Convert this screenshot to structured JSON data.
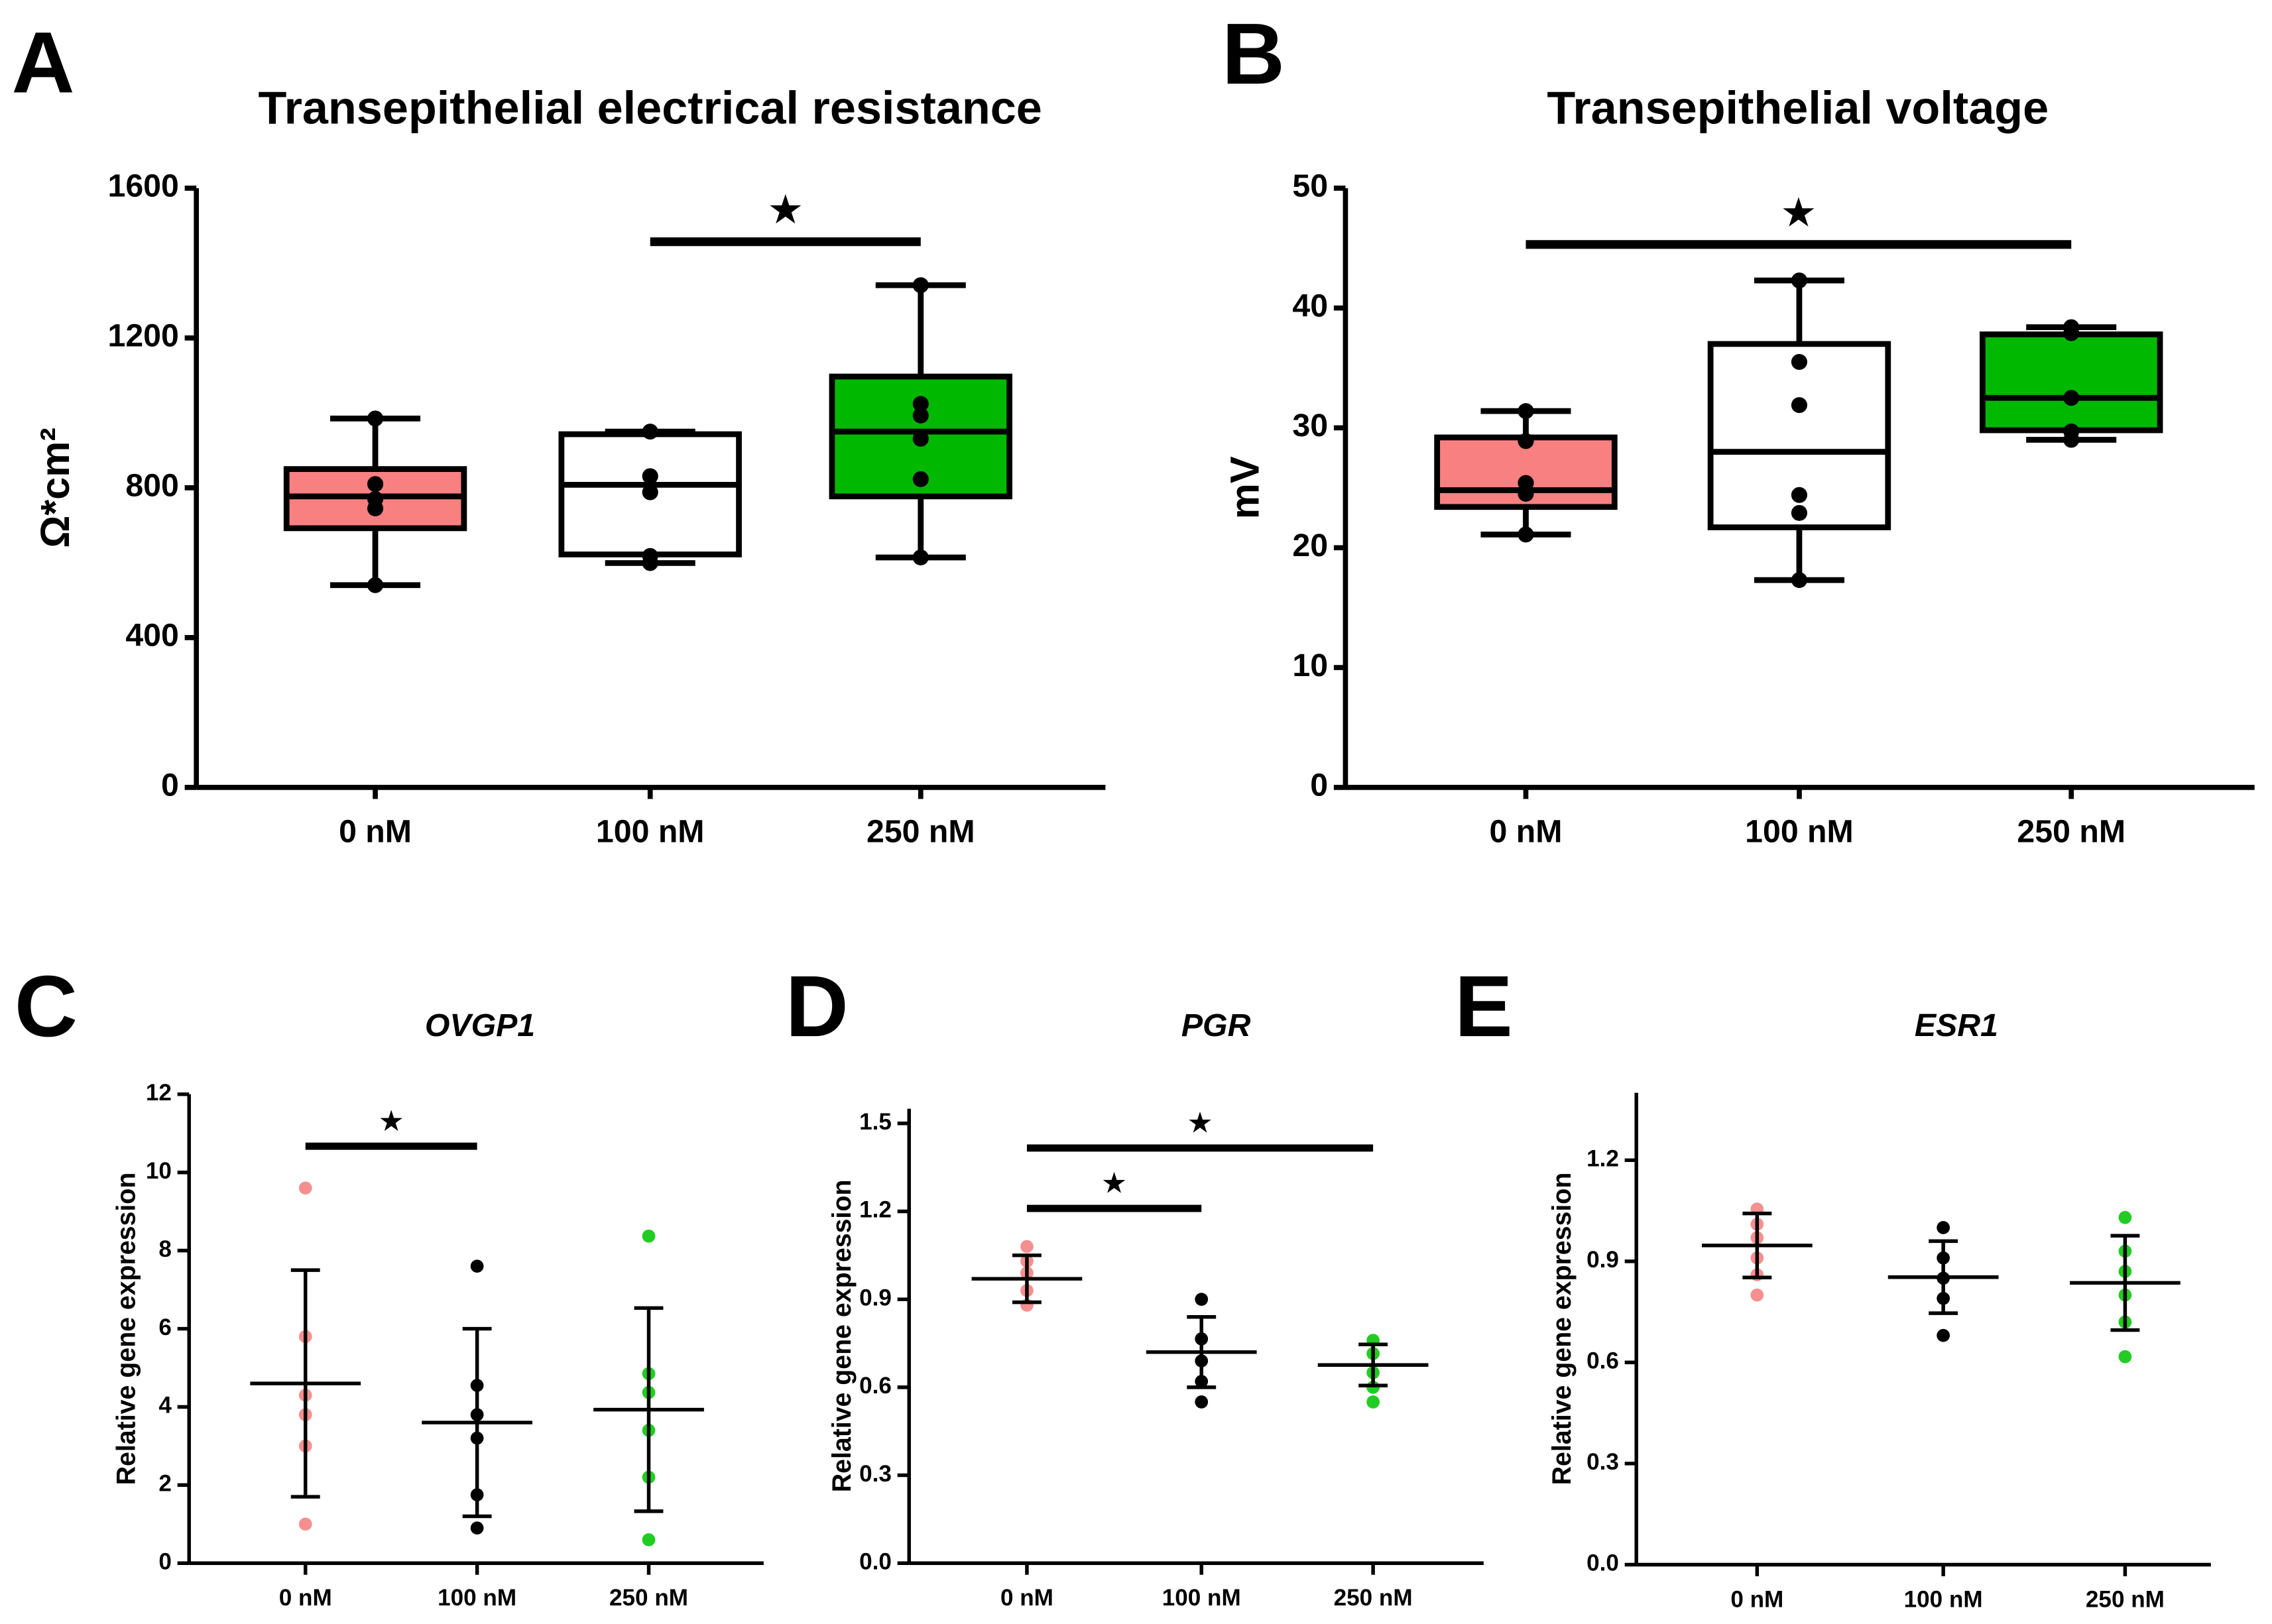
{
  "chart_data": [
    {
      "type": "box",
      "panel": "A",
      "title": "Transepithelial electrical resistance",
      "ylabel": "Ω*cm²",
      "categories": [
        "0 nM",
        "100 nM",
        "250 nM"
      ],
      "ylim": [
        0,
        1600
      ],
      "yticks": [
        0,
        400,
        800,
        1200,
        1600
      ],
      "groups": [
        {
          "color": "#f88080",
          "min": 540,
          "q1": 692,
          "median": 777,
          "q3": 850,
          "max": 985,
          "points": [
            985,
            810,
            770,
            745,
            540
          ]
        },
        {
          "color": "#ffffff",
          "min": 599,
          "q1": 622,
          "median": 808,
          "q3": 943,
          "max": 950,
          "points": [
            950,
            831,
            788,
            618,
            599
          ]
        },
        {
          "color": "#00b800",
          "min": 614,
          "q1": 777,
          "median": 950,
          "q3": 1097,
          "max": 1341,
          "points": [
            1341,
            1024,
            993,
            931,
            823,
            614
          ]
        }
      ],
      "annotations": [
        {
          "from": 1,
          "to": 2,
          "y": 1457,
          "label": "★"
        }
      ]
    },
    {
      "type": "box",
      "panel": "B",
      "title": "Transepithelial voltage",
      "ylabel": "mV",
      "categories": [
        "0 nM",
        "100 nM",
        "250 nM"
      ],
      "ylim": [
        0,
        50
      ],
      "yticks": [
        0,
        10,
        20,
        30,
        40,
        50
      ],
      "groups": [
        {
          "color": "#f88080",
          "min": 21.1,
          "q1": 23.4,
          "median": 24.8,
          "q3": 29.2,
          "max": 31.4,
          "points": [
            31.4,
            28.9,
            25.4,
            24.5,
            21.1
          ]
        },
        {
          "color": "#ffffff",
          "min": 17.3,
          "q1": 21.7,
          "median": 28,
          "q3": 37,
          "max": 42.3,
          "points": [
            42.3,
            35.5,
            31.9,
            24.4,
            22.9,
            17.3
          ]
        },
        {
          "color": "#00b800",
          "min": 29,
          "q1": 29.8,
          "median": 32.5,
          "q3": 37.8,
          "max": 38.4,
          "points": [
            38.4,
            37.9,
            32.5,
            29.7,
            29
          ]
        }
      ],
      "annotations": [
        {
          "from": 0,
          "to": 2,
          "y": 45.3,
          "label": "★"
        }
      ]
    },
    {
      "type": "dot",
      "panel": "C",
      "title": "OVGP1",
      "ylabel": "Relative gene expression",
      "categories": [
        "0 nM",
        "100 nM",
        "250 nM"
      ],
      "ylim": [
        0,
        12
      ],
      "yticks": [
        0,
        2,
        4,
        6,
        8,
        10,
        12
      ],
      "groups": [
        {
          "color": "#f59090",
          "mean": 4.6,
          "sd": 2.9,
          "points": [
            9.6,
            5.8,
            4.3,
            3.8,
            3.0,
            1.0
          ]
        },
        {
          "color": "#000000",
          "mean": 3.6,
          "sd": 2.4,
          "points": [
            7.6,
            4.55,
            3.8,
            3.2,
            1.75,
            0.9
          ]
        },
        {
          "color": "#22cc22",
          "mean": 3.93,
          "sd": 2.6,
          "points": [
            8.37,
            4.85,
            4.37,
            3.4,
            2.2,
            0.6
          ]
        }
      ],
      "annotations": [
        {
          "from": 0,
          "to": 1,
          "y": 10.67,
          "label": "★"
        }
      ]
    },
    {
      "type": "dot",
      "panel": "D",
      "title": "PGR",
      "ylabel": "Relative gene expression",
      "categories": [
        "0 nM",
        "100 nM",
        "250 nM"
      ],
      "ylim": [
        0,
        1.55
      ],
      "yticks": [
        {
          "value": 0,
          "label": "0.0"
        },
        0.3,
        0.6,
        0.9,
        1.2,
        1.5
      ],
      "groups": [
        {
          "color": "#f59090",
          "mean": 0.97,
          "sd": 0.08,
          "points": [
            1.08,
            1.03,
            0.99,
            0.93,
            0.88
          ]
        },
        {
          "color": "#000000",
          "mean": 0.72,
          "sd": 0.12,
          "points": [
            0.9,
            0.765,
            0.69,
            0.62,
            0.55
          ]
        },
        {
          "color": "#22cc22",
          "mean": 0.676,
          "sd": 0.07,
          "points": [
            0.76,
            0.715,
            0.65,
            0.6,
            0.55
          ]
        }
      ],
      "annotations": [
        {
          "from": 0,
          "to": 1,
          "y": 1.21,
          "label": "★"
        },
        {
          "from": 0,
          "to": 2,
          "y": 1.416,
          "label": "★"
        }
      ]
    },
    {
      "type": "dot",
      "panel": "E",
      "title": "ESR1",
      "ylabel": "Relative gene expression",
      "categories": [
        "0 nM",
        "100 nM",
        "250 nM"
      ],
      "ylim": [
        0,
        1.4
      ],
      "yticks": [
        {
          "value": 0,
          "label": "0.0"
        },
        0.3,
        0.6,
        0.9,
        1.2
      ],
      "groups": [
        {
          "color": "#f59090",
          "mean": 0.947,
          "sd": 0.095,
          "points": [
            1.055,
            1.01,
            0.97,
            0.91,
            0.86,
            0.8
          ]
        },
        {
          "color": "#000000",
          "mean": 0.853,
          "sd": 0.107,
          "points": [
            1.0,
            0.91,
            0.85,
            0.79,
            0.68
          ]
        },
        {
          "color": "#22cc22",
          "mean": 0.836,
          "sd": 0.14,
          "points": [
            1.03,
            0.93,
            0.87,
            0.8,
            0.72,
            0.617
          ]
        }
      ],
      "annotations": []
    }
  ]
}
